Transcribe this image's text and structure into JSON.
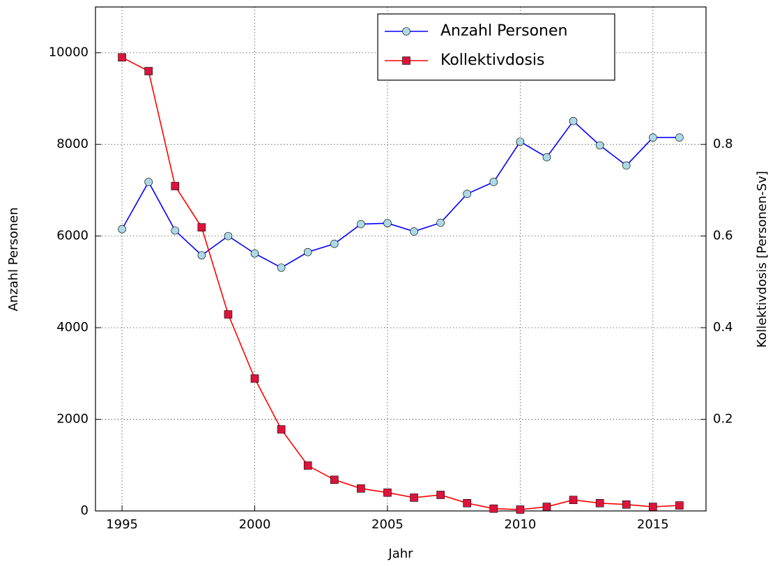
{
  "chart_data": {
    "type": "line",
    "xlabel": "Jahr",
    "ylabel": "Anzahl Personen",
    "y2label": "Kollektivdosis [Personen-Sv]",
    "x": [
      1995,
      1996,
      1997,
      1998,
      1999,
      2000,
      2001,
      2002,
      2003,
      2004,
      2005,
      2006,
      2007,
      2008,
      2009,
      2010,
      2011,
      2012,
      2013,
      2014,
      2015,
      2016
    ],
    "series": [
      {
        "name": "Anzahl Personen",
        "color": "#0000ff",
        "marker_color": "#add8e6",
        "marker": "circle",
        "values": [
          6150,
          7180,
          6120,
          5580,
          6000,
          5620,
          5310,
          5650,
          5830,
          6260,
          6280,
          6100,
          6290,
          6920,
          7180,
          8060,
          7720,
          8510,
          7980,
          7540,
          8150,
          8150
        ]
      },
      {
        "name": "Kollektivdosis",
        "color": "#ff0000",
        "marker_color": "#dc143c",
        "marker": "square",
        "axis": "y2",
        "values": [
          0.99,
          0.96,
          0.709,
          0.619,
          0.429,
          0.289,
          0.178,
          0.099,
          0.068,
          0.049,
          0.04,
          0.029,
          0.035,
          0.017,
          0.005,
          0.003,
          0.009,
          0.024,
          0.017,
          0.014,
          0.009,
          0.012
        ]
      }
    ],
    "xlim": [
      1994,
      2017
    ],
    "xticks": [
      1995,
      2000,
      2005,
      2010,
      2015
    ],
    "ylim": [
      0,
      11000
    ],
    "yticks": [
      0,
      2000,
      4000,
      6000,
      8000,
      10000
    ],
    "y2lim": [
      0,
      1.1
    ],
    "y2ticks": [
      0.2,
      0.4,
      0.6,
      0.8
    ],
    "grid": true,
    "legend": "upper center"
  }
}
